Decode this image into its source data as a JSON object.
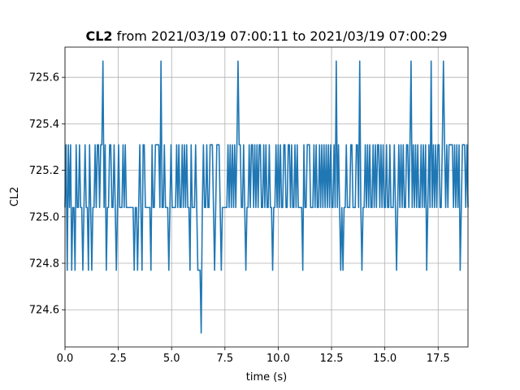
{
  "chart_data": {
    "type": "line",
    "title_bold": "CL2",
    "title_rest": " from 2021/03/19 07:00:11 to 2021/03/19 07:00:29",
    "xlabel": "time (s)",
    "ylabel": "CL2",
    "xlim": [
      0,
      18.9
    ],
    "ylim": [
      724.44,
      725.73
    ],
    "grid": true,
    "x_ticks": [
      0,
      2.5,
      5,
      7.5,
      10,
      12.5,
      15,
      17.5
    ],
    "x_tick_labels": [
      "0.0",
      "2.5",
      "5.0",
      "7.5",
      "10.0",
      "12.5",
      "15.0",
      "17.5"
    ],
    "y_ticks": [
      724.6,
      724.8,
      725.0,
      725.2,
      725.4,
      725.6
    ],
    "y_tick_labels": [
      "724.6",
      "724.8",
      "725.0",
      "725.2",
      "725.4",
      "725.6"
    ],
    "line_color": "#1f77b4",
    "sample_interval_s": 0.05,
    "levels": {
      "low_outlier": 724.5,
      "low": 724.77,
      "mid": 725.04,
      "high": 725.31,
      "spike": 725.67
    },
    "series": [
      {
        "x_start": 0,
        "x_end": 18.9,
        "y": [
          725.04,
          725.31,
          724.77,
          725.31,
          725.04,
          725.31,
          724.77,
          725.04,
          725.04,
          724.77,
          725.31,
          725.04,
          725.04,
          725.31,
          725.04,
          725.04,
          724.77,
          725.04,
          725.31,
          725.04,
          725.04,
          724.77,
          725.31,
          725.04,
          724.77,
          725.04,
          725.04,
          725.31,
          725.04,
          725.31,
          725.31,
          725.04,
          725.31,
          725.31,
          725.67,
          725.04,
          725.31,
          724.77,
          725.04,
          725.04,
          725.31,
          725.31,
          725.04,
          725.04,
          725.31,
          725.04,
          724.77,
          725.04,
          725.31,
          725.04,
          725.04,
          725.04,
          725.31,
          725.04,
          725.31,
          725.04,
          725.04,
          725.04,
          725.04,
          725.04,
          725.04,
          725.04,
          724.77,
          725.04,
          725.04,
          724.77,
          725.04,
          725.31,
          725.04,
          724.77,
          725.31,
          725.31,
          725.04,
          725.04,
          725.04,
          725.04,
          725.04,
          724.77,
          725.31,
          725.04,
          725.04,
          725.31,
          725.31,
          725.31,
          725.31,
          725.04,
          725.67,
          725.04,
          725.04,
          725.31,
          725.04,
          725.04,
          725.04,
          724.77,
          725.04,
          725.31,
          725.04,
          725.04,
          725.04,
          725.04,
          725.31,
          725.04,
          725.31,
          725.04,
          725.04,
          725.31,
          725.04,
          725.31,
          725.04,
          725.31,
          725.04,
          725.04,
          724.77,
          725.31,
          725.04,
          725.04,
          725.04,
          725.31,
          725.04,
          724.77,
          724.77,
          724.77,
          724.5,
          725.04,
          725.31,
          725.04,
          725.04,
          725.31,
          725.04,
          725.04,
          725.31,
          725.31,
          725.31,
          725.04,
          724.77,
          725.04,
          725.31,
          725.31,
          725.31,
          725.04,
          724.77,
          725.04,
          725.04,
          725.04,
          725.04,
          725.04,
          725.31,
          725.04,
          725.31,
          725.04,
          725.31,
          725.04,
          725.31,
          725.04,
          725.31,
          725.67,
          725.31,
          725.31,
          725.04,
          725.04,
          725.31,
          725.04,
          724.77,
          725.04,
          725.04,
          725.31,
          725.04,
          725.31,
          725.31,
          725.04,
          725.31,
          725.04,
          725.31,
          725.04,
          725.31,
          725.31,
          725.04,
          725.04,
          725.31,
          725.04,
          725.31,
          725.04,
          725.04,
          725.31,
          725.04,
          725.04,
          724.77,
          725.04,
          725.04,
          725.31,
          725.04,
          725.31,
          725.04,
          725.31,
          725.04,
          725.04,
          725.31,
          725.31,
          725.04,
          725.04,
          725.31,
          725.31,
          725.04,
          725.31,
          725.04,
          725.04,
          725.31,
          725.04,
          725.31,
          725.04,
          725.04,
          725.04,
          725.04,
          724.77,
          725.31,
          725.04,
          725.04,
          725.31,
          725.31,
          725.31,
          725.04,
          725.04,
          725.04,
          725.31,
          725.04,
          725.31,
          725.04,
          725.04,
          725.31,
          725.04,
          725.31,
          725.04,
          725.31,
          725.04,
          725.31,
          725.04,
          725.31,
          725.04,
          725.31,
          725.04,
          725.04,
          725.31,
          725.04,
          725.67,
          725.04,
          725.31,
          725.04,
          724.77,
          725.04,
          724.77,
          725.04,
          725.04,
          725.31,
          725.04,
          725.04,
          725.04,
          725.31,
          725.31,
          725.04,
          725.04,
          725.04,
          725.31,
          725.31,
          725.04,
          725.67,
          725.04,
          724.77,
          725.04,
          725.04,
          725.31,
          725.04,
          725.31,
          725.04,
          725.31,
          725.04,
          725.04,
          725.31,
          725.04,
          725.31,
          725.04,
          725.31,
          725.31,
          725.04,
          725.31,
          725.04,
          725.31,
          725.04,
          725.04,
          725.31,
          725.04,
          725.04,
          725.31,
          725.04,
          725.04,
          725.04,
          725.31,
          725.04,
          724.77,
          725.04,
          725.31,
          725.04,
          725.31,
          725.04,
          725.31,
          725.04,
          725.04,
          725.31,
          725.31,
          725.04,
          725.31,
          725.67,
          725.04,
          725.31,
          725.04,
          725.31,
          725.04,
          725.31,
          725.04,
          725.04,
          725.31,
          725.04,
          725.31,
          725.04,
          725.31,
          724.77,
          725.04,
          725.31,
          725.04,
          725.67,
          725.04,
          725.31,
          725.04,
          725.31,
          725.04,
          725.31,
          725.31,
          725.04,
          725.04,
          725.31,
          725.67,
          725.31,
          725.04,
          725.31,
          725.04,
          725.31,
          725.31,
          725.31,
          725.31,
          725.04,
          725.31,
          725.04,
          725.31,
          725.04,
          725.31,
          724.77,
          725.04,
          725.31,
          725.31,
          725.31,
          725.04,
          725.31,
          725.04
        ]
      }
    ]
  }
}
